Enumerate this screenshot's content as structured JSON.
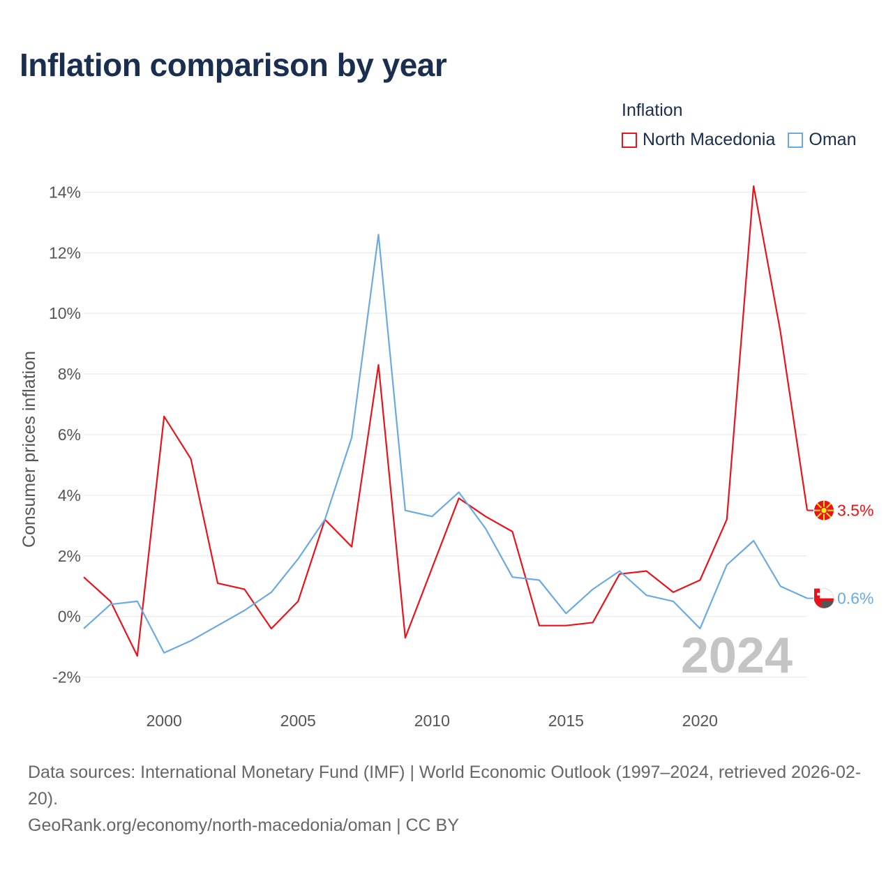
{
  "title": "Inflation comparison by year",
  "legend": {
    "title": "Inflation",
    "items": [
      {
        "label": "North Macedonia",
        "color": "#e8131b"
      },
      {
        "label": "Oman",
        "color": "#6aaae4"
      }
    ]
  },
  "footer": {
    "source": "Data sources: International Monetary Fund (IMF) | World Economic Outlook (1997–2024, retrieved 2026-02-20).",
    "credit": "GeoRank.org/economy/north-macedonia/oman | CC BY"
  },
  "chart_data": {
    "type": "line",
    "title": "Inflation comparison by year",
    "ylabel": "Consumer prices inflation",
    "xlabel": "",
    "xlim": [
      1997,
      2024
    ],
    "ylim": [
      -3,
      14.4
    ],
    "yticks": [
      -2,
      0,
      2,
      4,
      6,
      8,
      10,
      12,
      14
    ],
    "ytick_labels": [
      "-2%",
      "0%",
      "2%",
      "4%",
      "6%",
      "8%",
      "10%",
      "12%",
      "14%"
    ],
    "xticks": [
      2000,
      2005,
      2010,
      2015,
      2020
    ],
    "xtick_labels": [
      "2000",
      "2005",
      "2010",
      "2015",
      "2020"
    ],
    "watermark": "2024",
    "x": [
      1997,
      1998,
      1999,
      2000,
      2001,
      2002,
      2003,
      2004,
      2005,
      2006,
      2007,
      2008,
      2009,
      2010,
      2011,
      2012,
      2013,
      2014,
      2015,
      2016,
      2017,
      2018,
      2019,
      2020,
      2021,
      2022,
      2023,
      2024
    ],
    "series": [
      {
        "name": "North Macedonia",
        "color": "#e8131b",
        "end_label": "3.5%",
        "values": [
          1.3,
          0.5,
          -1.3,
          6.6,
          5.2,
          1.1,
          0.9,
          -0.4,
          0.5,
          3.2,
          2.3,
          8.3,
          -0.7,
          1.6,
          3.9,
          3.3,
          2.8,
          -0.3,
          -0.3,
          -0.2,
          1.4,
          1.5,
          0.8,
          1.2,
          3.2,
          14.2,
          9.4,
          3.5
        ]
      },
      {
        "name": "Oman",
        "color": "#6aaae4",
        "end_label": "0.6%",
        "values": [
          -0.4,
          0.4,
          0.5,
          -1.2,
          -0.8,
          -0.3,
          0.2,
          0.8,
          1.9,
          3.2,
          5.9,
          12.6,
          3.5,
          3.3,
          4.1,
          2.9,
          1.3,
          1.2,
          0.1,
          0.9,
          1.5,
          0.7,
          0.5,
          -0.4,
          1.7,
          2.5,
          1.0,
          0.6
        ]
      }
    ]
  }
}
